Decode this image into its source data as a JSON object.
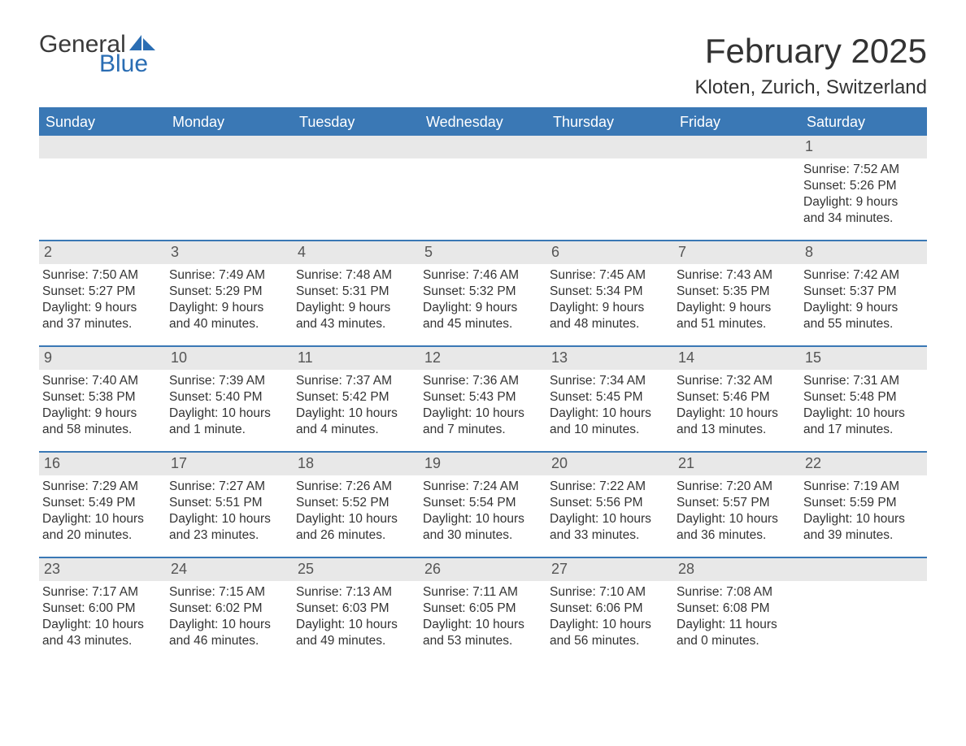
{
  "logo": {
    "text_general": "General",
    "text_blue": "Blue"
  },
  "title": "February 2025",
  "location": "Kloten, Zurich, Switzerland",
  "colors": {
    "header_bg": "#3a78b5",
    "header_text": "#ffffff",
    "daynum_bg": "#e8e8e8",
    "row_border": "#3a78b5",
    "body_text": "#333333",
    "logo_blue": "#2a6db3"
  },
  "weekday_labels": [
    "Sunday",
    "Monday",
    "Tuesday",
    "Wednesday",
    "Thursday",
    "Friday",
    "Saturday"
  ],
  "weeks": [
    [
      {
        "blank": true
      },
      {
        "blank": true
      },
      {
        "blank": true
      },
      {
        "blank": true
      },
      {
        "blank": true
      },
      {
        "blank": true
      },
      {
        "day": "1",
        "sunrise": "Sunrise: 7:52 AM",
        "sunset": "Sunset: 5:26 PM",
        "daylight": "Daylight: 9 hours and 34 minutes."
      }
    ],
    [
      {
        "day": "2",
        "sunrise": "Sunrise: 7:50 AM",
        "sunset": "Sunset: 5:27 PM",
        "daylight": "Daylight: 9 hours and 37 minutes."
      },
      {
        "day": "3",
        "sunrise": "Sunrise: 7:49 AM",
        "sunset": "Sunset: 5:29 PM",
        "daylight": "Daylight: 9 hours and 40 minutes."
      },
      {
        "day": "4",
        "sunrise": "Sunrise: 7:48 AM",
        "sunset": "Sunset: 5:31 PM",
        "daylight": "Daylight: 9 hours and 43 minutes."
      },
      {
        "day": "5",
        "sunrise": "Sunrise: 7:46 AM",
        "sunset": "Sunset: 5:32 PM",
        "daylight": "Daylight: 9 hours and 45 minutes."
      },
      {
        "day": "6",
        "sunrise": "Sunrise: 7:45 AM",
        "sunset": "Sunset: 5:34 PM",
        "daylight": "Daylight: 9 hours and 48 minutes."
      },
      {
        "day": "7",
        "sunrise": "Sunrise: 7:43 AM",
        "sunset": "Sunset: 5:35 PM",
        "daylight": "Daylight: 9 hours and 51 minutes."
      },
      {
        "day": "8",
        "sunrise": "Sunrise: 7:42 AM",
        "sunset": "Sunset: 5:37 PM",
        "daylight": "Daylight: 9 hours and 55 minutes."
      }
    ],
    [
      {
        "day": "9",
        "sunrise": "Sunrise: 7:40 AM",
        "sunset": "Sunset: 5:38 PM",
        "daylight": "Daylight: 9 hours and 58 minutes."
      },
      {
        "day": "10",
        "sunrise": "Sunrise: 7:39 AM",
        "sunset": "Sunset: 5:40 PM",
        "daylight": "Daylight: 10 hours and 1 minute."
      },
      {
        "day": "11",
        "sunrise": "Sunrise: 7:37 AM",
        "sunset": "Sunset: 5:42 PM",
        "daylight": "Daylight: 10 hours and 4 minutes."
      },
      {
        "day": "12",
        "sunrise": "Sunrise: 7:36 AM",
        "sunset": "Sunset: 5:43 PM",
        "daylight": "Daylight: 10 hours and 7 minutes."
      },
      {
        "day": "13",
        "sunrise": "Sunrise: 7:34 AM",
        "sunset": "Sunset: 5:45 PM",
        "daylight": "Daylight: 10 hours and 10 minutes."
      },
      {
        "day": "14",
        "sunrise": "Sunrise: 7:32 AM",
        "sunset": "Sunset: 5:46 PM",
        "daylight": "Daylight: 10 hours and 13 minutes."
      },
      {
        "day": "15",
        "sunrise": "Sunrise: 7:31 AM",
        "sunset": "Sunset: 5:48 PM",
        "daylight": "Daylight: 10 hours and 17 minutes."
      }
    ],
    [
      {
        "day": "16",
        "sunrise": "Sunrise: 7:29 AM",
        "sunset": "Sunset: 5:49 PM",
        "daylight": "Daylight: 10 hours and 20 minutes."
      },
      {
        "day": "17",
        "sunrise": "Sunrise: 7:27 AM",
        "sunset": "Sunset: 5:51 PM",
        "daylight": "Daylight: 10 hours and 23 minutes."
      },
      {
        "day": "18",
        "sunrise": "Sunrise: 7:26 AM",
        "sunset": "Sunset: 5:52 PM",
        "daylight": "Daylight: 10 hours and 26 minutes."
      },
      {
        "day": "19",
        "sunrise": "Sunrise: 7:24 AM",
        "sunset": "Sunset: 5:54 PM",
        "daylight": "Daylight: 10 hours and 30 minutes."
      },
      {
        "day": "20",
        "sunrise": "Sunrise: 7:22 AM",
        "sunset": "Sunset: 5:56 PM",
        "daylight": "Daylight: 10 hours and 33 minutes."
      },
      {
        "day": "21",
        "sunrise": "Sunrise: 7:20 AM",
        "sunset": "Sunset: 5:57 PM",
        "daylight": "Daylight: 10 hours and 36 minutes."
      },
      {
        "day": "22",
        "sunrise": "Sunrise: 7:19 AM",
        "sunset": "Sunset: 5:59 PM",
        "daylight": "Daylight: 10 hours and 39 minutes."
      }
    ],
    [
      {
        "day": "23",
        "sunrise": "Sunrise: 7:17 AM",
        "sunset": "Sunset: 6:00 PM",
        "daylight": "Daylight: 10 hours and 43 minutes."
      },
      {
        "day": "24",
        "sunrise": "Sunrise: 7:15 AM",
        "sunset": "Sunset: 6:02 PM",
        "daylight": "Daylight: 10 hours and 46 minutes."
      },
      {
        "day": "25",
        "sunrise": "Sunrise: 7:13 AM",
        "sunset": "Sunset: 6:03 PM",
        "daylight": "Daylight: 10 hours and 49 minutes."
      },
      {
        "day": "26",
        "sunrise": "Sunrise: 7:11 AM",
        "sunset": "Sunset: 6:05 PM",
        "daylight": "Daylight: 10 hours and 53 minutes."
      },
      {
        "day": "27",
        "sunrise": "Sunrise: 7:10 AM",
        "sunset": "Sunset: 6:06 PM",
        "daylight": "Daylight: 10 hours and 56 minutes."
      },
      {
        "day": "28",
        "sunrise": "Sunrise: 7:08 AM",
        "sunset": "Sunset: 6:08 PM",
        "daylight": "Daylight: 11 hours and 0 minutes."
      },
      {
        "blank": true
      }
    ]
  ]
}
